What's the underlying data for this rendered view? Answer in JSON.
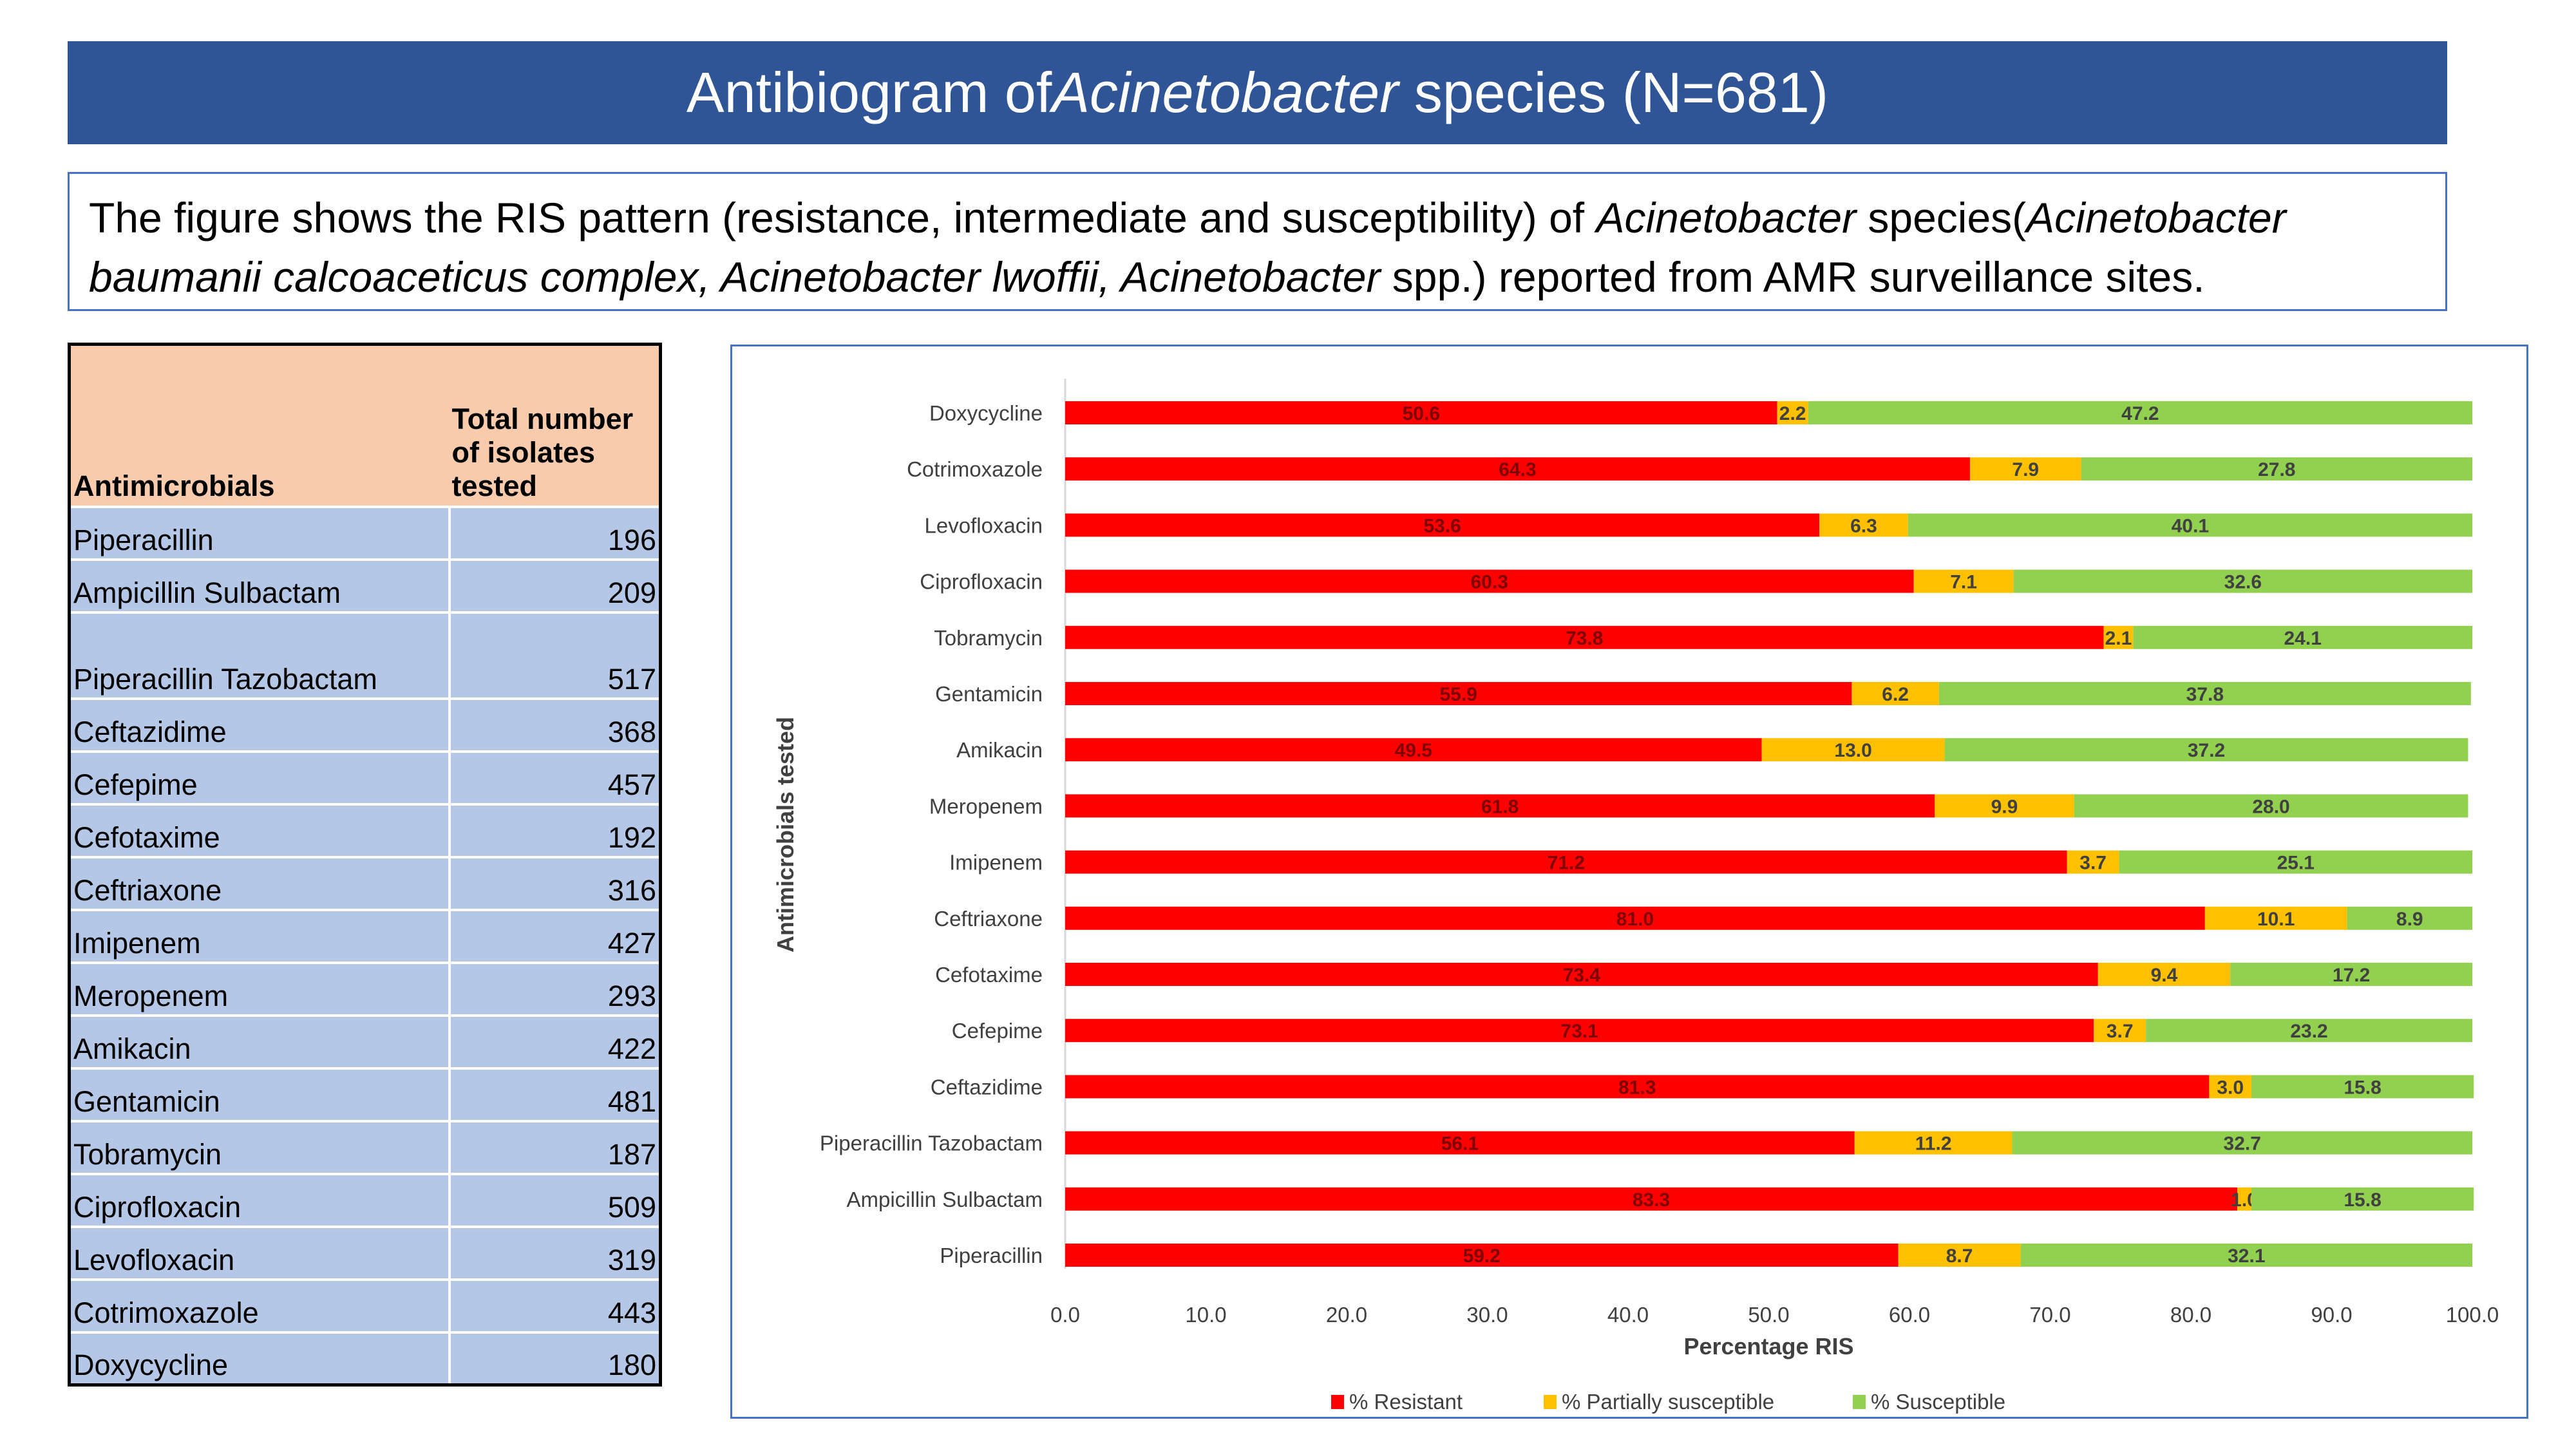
{
  "title": {
    "pre": "Antibiogram of ",
    "italic": "Acinetobacter",
    "post": " species (N=681)"
  },
  "description": {
    "p1": "The figure shows the RIS pattern (resistance, intermediate and susceptibility) of ",
    "i1": "Acinetobacter",
    "p2": " species(",
    "i2": "Acinetobacter baumanii calcoaceticus complex, Acinetobacter lwoffii, Acinetobacter",
    "p3": " spp.) reported from AMR surveillance sites."
  },
  "table": {
    "headers": [
      "Antimicrobials",
      "Total number of isolates tested"
    ],
    "rows": [
      [
        "Piperacillin",
        "196"
      ],
      [
        "Ampicillin Sulbactam",
        "209"
      ],
      [
        "Piperacillin Tazobactam",
        "517"
      ],
      [
        "Ceftazidime",
        "368"
      ],
      [
        "Cefepime",
        "457"
      ],
      [
        "Cefotaxime",
        "192"
      ],
      [
        "Ceftriaxone",
        "316"
      ],
      [
        "Imipenem",
        "427"
      ],
      [
        "Meropenem",
        "293"
      ],
      [
        "Amikacin",
        "422"
      ],
      [
        "Gentamicin",
        "481"
      ],
      [
        "Tobramycin",
        "187"
      ],
      [
        "Ciprofloxacin",
        "509"
      ],
      [
        "Levofloxacin",
        "319"
      ],
      [
        "Cotrimoxazole",
        "443"
      ],
      [
        "Doxycycline",
        "180"
      ]
    ]
  },
  "chart_data": {
    "type": "bar",
    "orientation": "horizontal",
    "stacked": true,
    "xlabel": "Percentage RIS",
    "ylabel": "Antimicrobials tested",
    "xlim": [
      0,
      100
    ],
    "xticks": [
      "0.0",
      "10.0",
      "20.0",
      "30.0",
      "40.0",
      "50.0",
      "60.0",
      "70.0",
      "80.0",
      "90.0",
      "100.0"
    ],
    "legend_position": "bottom",
    "categories": [
      "Doxycycline",
      "Cotrimoxazole",
      "Levofloxacin",
      "Ciprofloxacin",
      "Tobramycin",
      "Gentamicin",
      "Amikacin",
      "Meropenem",
      "Imipenem",
      "Ceftriaxone",
      "Cefotaxime",
      "Cefepime",
      "Ceftazidime",
      "Piperacillin Tazobactam",
      "Ampicillin Sulbactam",
      "Piperacillin"
    ],
    "series": [
      {
        "name": "% Resistant",
        "color": "#ff0000",
        "values": [
          50.6,
          64.3,
          53.6,
          60.3,
          73.8,
          55.9,
          49.5,
          61.8,
          71.2,
          81.0,
          73.4,
          73.1,
          81.3,
          56.1,
          83.3,
          59.2
        ]
      },
      {
        "name": "% Partially susceptible",
        "color": "#ffc000",
        "values": [
          2.2,
          7.9,
          6.3,
          7.1,
          2.1,
          6.2,
          13.0,
          9.9,
          3.7,
          10.1,
          9.4,
          3.7,
          3.0,
          11.2,
          1.0,
          8.7
        ]
      },
      {
        "name": "% Susceptible",
        "color": "#92d050",
        "values": [
          47.2,
          27.8,
          40.1,
          32.6,
          24.1,
          37.8,
          37.2,
          28.0,
          25.1,
          8.9,
          17.2,
          23.2,
          15.8,
          32.7,
          15.8,
          32.1
        ]
      }
    ]
  }
}
